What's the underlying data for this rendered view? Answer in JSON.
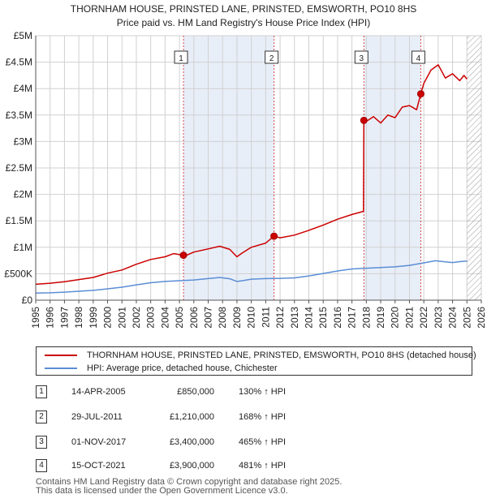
{
  "title": {
    "line1": "THORNHAM HOUSE, PRINSTED LANE, PRINSTED, EMSWORTH, PO10 8HS",
    "line2": "Price paid vs. HM Land Registry's House Price Index (HPI)"
  },
  "colors": {
    "property": "#cc0000",
    "hpi": "#5b8ed6",
    "shade": "#e8eef8",
    "vline": "#cc0000",
    "hatch": "#999999",
    "grid": "#d0d0d0"
  },
  "chart_data": {
    "type": "line",
    "x_range": [
      1995,
      2026
    ],
    "ylim": [
      0,
      5000000
    ],
    "yticks": [
      0,
      500000,
      1000000,
      1500000,
      2000000,
      2500000,
      3000000,
      3500000,
      4000000,
      4500000,
      5000000
    ],
    "ytick_labels": [
      "£0",
      "£500K",
      "£1M",
      "£1.5M",
      "£2M",
      "£2.5M",
      "£3M",
      "£3.5M",
      "£4M",
      "£4.5M",
      "£5M"
    ],
    "xticks": [
      "1995",
      "1996",
      "1997",
      "1998",
      "1999",
      "2000",
      "2001",
      "2002",
      "2003",
      "2004",
      "2005",
      "2006",
      "2007",
      "2008",
      "2009",
      "2010",
      "2011",
      "2012",
      "2013",
      "2014",
      "2015",
      "2016",
      "2017",
      "2018",
      "2019",
      "2020",
      "2021",
      "2022",
      "2023",
      "2024",
      "2025",
      "2026"
    ],
    "grid": true,
    "future_hatch_from": 2025.0,
    "shaded_periods": [
      [
        2005.28,
        2011.58
      ],
      [
        2017.83,
        2021.79
      ]
    ],
    "series": [
      {
        "name": "THORNHAM HOUSE, PRINSTED LANE, PRINSTED, EMSWORTH, PO10 8HS (detached house)",
        "x": [
          1995.0,
          1996.0,
          1997.0,
          1998.0,
          1999.0,
          2000.0,
          2001.0,
          2002.0,
          2003.0,
          2004.0,
          2004.6,
          2005.28,
          2005.5,
          2006.0,
          2007.0,
          2007.8,
          2008.5,
          2009.0,
          2009.3,
          2010.0,
          2011.0,
          2011.58,
          2012.0,
          2013.0,
          2014.0,
          2015.0,
          2016.0,
          2017.0,
          2017.8,
          2017.83,
          2018.0,
          2018.5,
          2019.0,
          2019.5,
          2020.0,
          2020.5,
          2021.0,
          2021.5,
          2021.79,
          2022.0,
          2022.5,
          2023.0,
          2023.5,
          2024.0,
          2024.5,
          2024.8,
          2025.0
        ],
        "y": [
          300000,
          320000,
          350000,
          390000,
          430000,
          510000,
          570000,
          680000,
          770000,
          820000,
          880000,
          850000,
          850000,
          910000,
          970000,
          1020000,
          960000,
          820000,
          880000,
          1000000,
          1080000,
          1210000,
          1180000,
          1230000,
          1320000,
          1420000,
          1530000,
          1620000,
          1680000,
          3400000,
          3380000,
          3470000,
          3350000,
          3500000,
          3450000,
          3650000,
          3680000,
          3600000,
          3900000,
          4100000,
          4350000,
          4450000,
          4200000,
          4280000,
          4150000,
          4250000,
          4180000
        ]
      },
      {
        "name": "HPI: Average price, detached house, Chichester",
        "x": [
          1995.0,
          1996.0,
          1997.0,
          1998.0,
          1999.0,
          2000.0,
          2001.0,
          2002.0,
          2003.0,
          2004.0,
          2005.0,
          2006.0,
          2007.0,
          2007.8,
          2008.5,
          2009.0,
          2009.3,
          2010.0,
          2011.0,
          2012.0,
          2013.0,
          2014.0,
          2015.0,
          2016.0,
          2017.0,
          2018.0,
          2019.0,
          2020.0,
          2021.0,
          2022.0,
          2022.8,
          2023.5,
          2024.0,
          2024.5,
          2025.0
        ],
        "y": [
          135000,
          140000,
          152000,
          168000,
          185000,
          215000,
          245000,
          290000,
          330000,
          355000,
          368000,
          382000,
          408000,
          430000,
          405000,
          355000,
          365000,
          398000,
          408000,
          412000,
          422000,
          458000,
          505000,
          552000,
          590000,
          605000,
          618000,
          630000,
          658000,
          705000,
          745000,
          725000,
          712000,
          728000,
          740000
        ]
      }
    ],
    "markers": [
      {
        "label": "1",
        "x": 2005.28,
        "y": 850000
      },
      {
        "label": "2",
        "x": 2011.58,
        "y": 1210000
      },
      {
        "label": "3",
        "x": 2017.83,
        "y": 3400000
      },
      {
        "label": "4",
        "x": 2021.79,
        "y": 3900000
      }
    ]
  },
  "legend": {
    "property_label": "THORNHAM HOUSE, PRINSTED LANE, PRINSTED, EMSWORTH, PO10 8HS (detached house)",
    "hpi_label": "HPI: Average price, detached house, Chichester"
  },
  "transactions": [
    {
      "num": "1",
      "date": "14-APR-2005",
      "price": "£850,000",
      "hpi": "130% ↑ HPI"
    },
    {
      "num": "2",
      "date": "29-JUL-2011",
      "price": "£1,210,000",
      "hpi": "168% ↑ HPI"
    },
    {
      "num": "3",
      "date": "01-NOV-2017",
      "price": "£3,400,000",
      "hpi": "465% ↑ HPI"
    },
    {
      "num": "4",
      "date": "15-OCT-2021",
      "price": "£3,900,000",
      "hpi": "481% ↑ HPI"
    }
  ],
  "footer": {
    "line1": "Contains HM Land Registry data © Crown copyright and database right 2025.",
    "line2": "This data is licensed under the Open Government Licence v3.0."
  }
}
